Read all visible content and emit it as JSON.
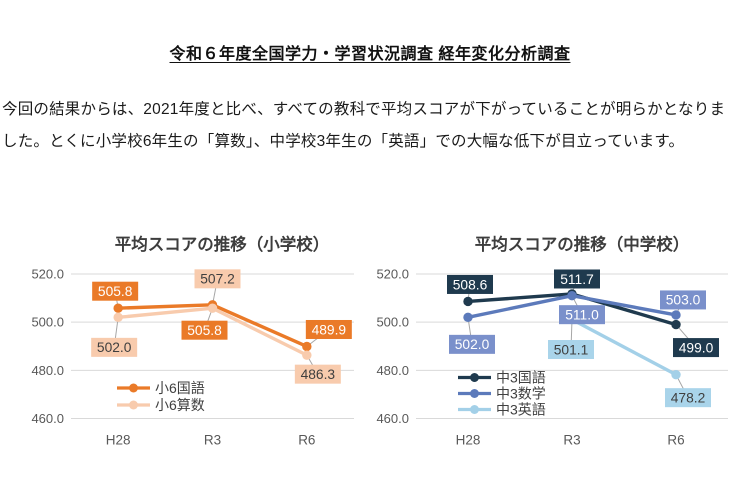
{
  "document": {
    "title": "令和６年度全国学力・学習状況調査 経年変化分析調査",
    "body": "今回の結果からは、2021年度と比べ、すべての教科で平均スコアが下がっていることが明らかとなりました。とくに小学校6年生の「算数」、中学校3年生の「英語」での大幅な低下が目立っています。"
  },
  "chart_data": [
    {
      "type": "line",
      "title": "平均スコアの推移（小学校）",
      "categories": [
        "H28",
        "R3",
        "R6"
      ],
      "ylim": [
        460,
        520
      ],
      "yticks": [
        520.0,
        500.0,
        480.0,
        460.0
      ],
      "ytick_labels": [
        "520.0",
        "500.0",
        "480.0",
        "460.0"
      ],
      "grid": true,
      "legend_position": "inside-bottom-center",
      "series": [
        {
          "name": "小6国語",
          "color": "#EA7A28",
          "label_bg": "#EA7A28",
          "label_fg": "#FFFFFF",
          "points": [
            {
              "category": "H28",
              "value": 505.8,
              "label": "505.8",
              "label_dx": -3,
              "label_dy": -17
            },
            {
              "category": "R3",
              "value": 507.2,
              "label": "507.2",
              "label_dx": 5,
              "label_dy": -26,
              "label_bg": "#F8CBAD",
              "label_fg": "#3F3F3F"
            },
            {
              "category": "R6",
              "value": 489.9,
              "label": "489.9",
              "label_dx": 22,
              "label_dy": -17
            }
          ]
        },
        {
          "name": "小6算数",
          "color": "#F8CBAD",
          "label_bg": "#F8CBAD",
          "label_fg": "#3F3F3F",
          "points": [
            {
              "category": "H28",
              "value": 502.0,
              "label": "502.0",
              "label_dx": -4,
              "label_dy": 30
            },
            {
              "category": "R3",
              "value": 505.8,
              "label": "505.8",
              "label_dx": -8,
              "label_dy": 22,
              "label_bg": "#EA7A28",
              "label_fg": "#FFFFFF"
            },
            {
              "category": "R6",
              "value": 486.3,
              "label": "486.3",
              "label_dx": 11,
              "label_dy": 19
            }
          ]
        }
      ]
    },
    {
      "type": "line",
      "title": "平均スコアの推移（中学校）",
      "categories": [
        "H28",
        "R3",
        "R6"
      ],
      "ylim": [
        460,
        520
      ],
      "yticks": [
        520.0,
        500.0,
        480.0,
        460.0
      ],
      "ytick_labels": [
        "520.0",
        "500.0",
        "480.0",
        "460.0"
      ],
      "grid": true,
      "legend_position": "inside-bottom-center",
      "series": [
        {
          "name": "中3国語",
          "color": "#1F3A4E",
          "label_bg": "#1F3A4E",
          "label_fg": "#FFFFFF",
          "points": [
            {
              "category": "H28",
              "value": 508.6,
              "label": "508.6",
              "label_dx": 2,
              "label_dy": -17
            },
            {
              "category": "R3",
              "value": 511.7,
              "label": "511.7",
              "label_dx": 5,
              "label_dy": -15
            },
            {
              "category": "R6",
              "value": 499.0,
              "label": "499.0",
              "label_dx": 20,
              "label_dy": 23
            }
          ]
        },
        {
          "name": "中3数学",
          "color": "#5C7ABB",
          "label_bg": "#7A90CB",
          "label_fg": "#FFFFFF",
          "points": [
            {
              "category": "H28",
              "value": 502.0,
              "label": "502.0",
              "label_dx": 4,
              "label_dy": 27
            },
            {
              "category": "R3",
              "value": 511.0,
              "label": "511.0",
              "label_dx": 10,
              "label_dy": 19
            },
            {
              "category": "R6",
              "value": 503.0,
              "label": "503.0",
              "label_dx": 7,
              "label_dy": -15
            }
          ]
        },
        {
          "name": "中3英語",
          "color": "#A3D0E8",
          "label_bg": "#A9D4EA",
          "label_fg": "#3F3F3F",
          "points": [
            {
              "category": "H28",
              "value": null
            },
            {
              "category": "R3",
              "value": 501.1,
              "label": "501.1",
              "label_dx": -1,
              "label_dy": 30
            },
            {
              "category": "R6",
              "value": 478.2,
              "label": "478.2",
              "label_dx": 12,
              "label_dy": 23
            }
          ]
        }
      ]
    }
  ],
  "theme": {
    "background": "#FFFFFF",
    "grid_color": "#D9D9D9",
    "axis_text_color": "#595959",
    "chart_title_color": "#3D3D3D",
    "legend_text_color": "#404040",
    "leader_line_color": "#A6A6A6"
  }
}
